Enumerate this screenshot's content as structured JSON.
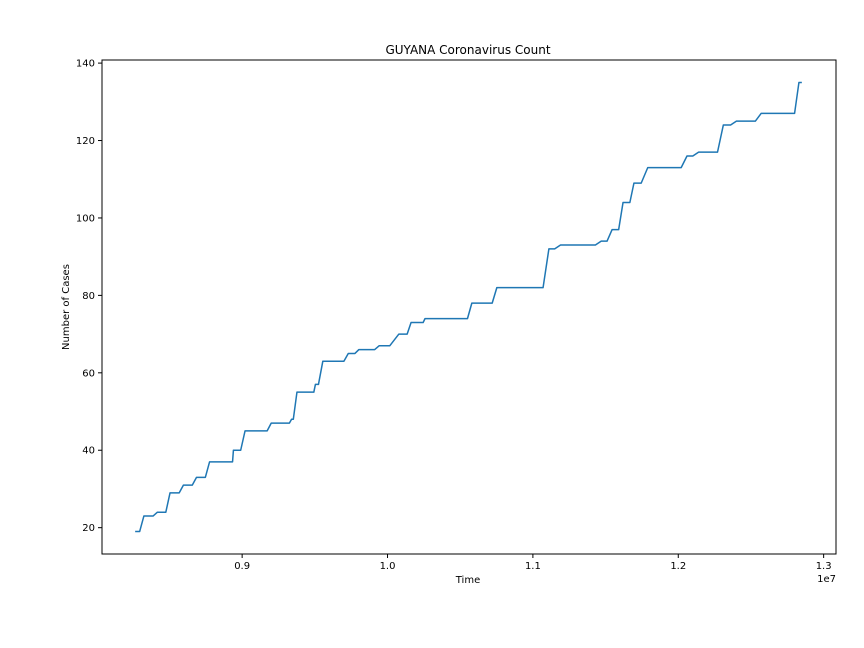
{
  "chart_data": {
    "type": "line",
    "title": "GUYANA Coronavirus Count",
    "xlabel": "Time",
    "ylabel": "Number of Cases",
    "x_offset_label": "1e7",
    "x_scale": 10000000,
    "xlim": [
      0.8036,
      1.3085
    ],
    "ylim": [
      13.2,
      140.8
    ],
    "xticks": [
      0.9,
      1.0,
      1.1,
      1.2,
      1.3
    ],
    "xtick_labels": [
      "0.9",
      "1.0",
      "1.1",
      "1.2",
      "1.3"
    ],
    "yticks": [
      20,
      40,
      60,
      80,
      100,
      120,
      140
    ],
    "ytick_labels": [
      "20",
      "40",
      "60",
      "80",
      "100",
      "120",
      "140"
    ],
    "grid": false,
    "legend": false,
    "series": [
      {
        "color": "#1f77b4",
        "points": [
          [
            0.8264,
            19
          ],
          [
            0.8295,
            19
          ],
          [
            0.8324,
            23
          ],
          [
            0.8387,
            23
          ],
          [
            0.8417,
            24
          ],
          [
            0.8475,
            24
          ],
          [
            0.8504,
            29
          ],
          [
            0.8567,
            29
          ],
          [
            0.8596,
            31
          ],
          [
            0.8657,
            31
          ],
          [
            0.8686,
            33
          ],
          [
            0.8747,
            33
          ],
          [
            0.8776,
            37
          ],
          [
            0.8934,
            37
          ],
          [
            0.894,
            40
          ],
          [
            0.899,
            40
          ],
          [
            0.902,
            45
          ],
          [
            0.9172,
            45
          ],
          [
            0.92,
            47
          ],
          [
            0.9325,
            47
          ],
          [
            0.934,
            48
          ],
          [
            0.9352,
            48
          ],
          [
            0.9377,
            55
          ],
          [
            0.9493,
            55
          ],
          [
            0.9504,
            57
          ],
          [
            0.9525,
            57
          ],
          [
            0.9555,
            63
          ],
          [
            0.97,
            63
          ],
          [
            0.973,
            65
          ],
          [
            0.9776,
            65
          ],
          [
            0.9803,
            66
          ],
          [
            0.9912,
            66
          ],
          [
            0.9943,
            67
          ],
          [
            1.0016,
            67
          ],
          [
            1.0078,
            70
          ],
          [
            1.0135,
            70
          ],
          [
            1.0162,
            73
          ],
          [
            1.0245,
            73
          ],
          [
            1.0258,
            74
          ],
          [
            1.055,
            74
          ],
          [
            1.058,
            78
          ],
          [
            1.072,
            78
          ],
          [
            1.0752,
            82
          ],
          [
            1.107,
            82
          ],
          [
            1.111,
            92
          ],
          [
            1.115,
            92
          ],
          [
            1.119,
            93
          ],
          [
            1.143,
            93
          ],
          [
            1.147,
            94
          ],
          [
            1.151,
            94
          ],
          [
            1.1545,
            97
          ],
          [
            1.159,
            97
          ],
          [
            1.162,
            104
          ],
          [
            1.1667,
            104
          ],
          [
            1.1695,
            109
          ],
          [
            1.1745,
            109
          ],
          [
            1.179,
            113
          ],
          [
            1.202,
            113
          ],
          [
            1.206,
            116
          ],
          [
            1.21,
            116
          ],
          [
            1.214,
            117
          ],
          [
            1.227,
            117
          ],
          [
            1.231,
            124
          ],
          [
            1.236,
            124
          ],
          [
            1.24,
            125
          ],
          [
            1.253,
            125
          ],
          [
            1.257,
            127
          ],
          [
            1.28,
            127
          ],
          [
            1.283,
            135
          ],
          [
            1.285,
            135
          ]
        ]
      }
    ]
  }
}
